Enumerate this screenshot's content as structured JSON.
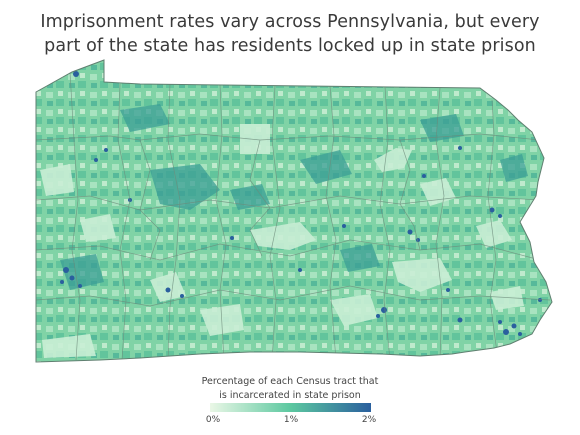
{
  "title": {
    "line1": "Imprisonment rates vary across Pennsylvania, but every",
    "line2": "part of the state has residents locked up in state prison"
  },
  "legend": {
    "title_line1": "Percentage of each Census tract that",
    "title_line2": "is incarcerated in state prison",
    "ticks": [
      "0%",
      "1%",
      "2%"
    ],
    "color_low": "#eaf7e6",
    "color_mid": "#5cc8a0",
    "color_high": "#2a5f9e"
  },
  "colors": {
    "region_fill": "#7fd2a6",
    "border": "#6d8a7a"
  }
}
